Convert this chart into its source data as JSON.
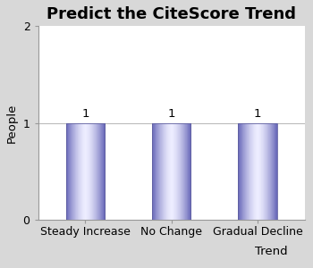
{
  "title": "Predict the CiteScore Trend",
  "categories": [
    "Steady Increase",
    "No Change",
    "Gradual Decline"
  ],
  "values": [
    1,
    1,
    1
  ],
  "ylabel": "People",
  "xlabel": "Trend",
  "ylim": [
    0,
    2
  ],
  "yticks": [
    0,
    1,
    2
  ],
  "bg_color": "#d8d8d8",
  "plot_bg": "#ffffff",
  "grid_color": "#bbbbbb",
  "title_fontsize": 13,
  "label_fontsize": 9.5,
  "tick_fontsize": 9,
  "value_label_fontsize": 9.5,
  "bar_width": 0.45
}
